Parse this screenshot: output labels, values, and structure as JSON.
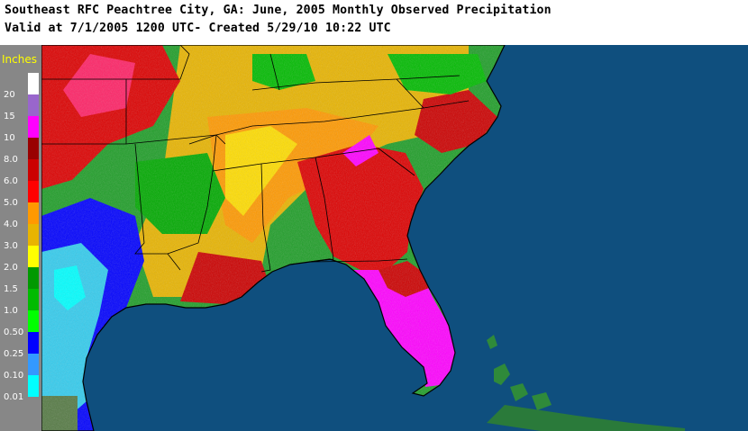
{
  "header": {
    "line1": "Southeast RFC Peachtree City, GA: June, 2005 Monthly Observed Precipitation",
    "line2": "Valid at 7/1/2005 1200 UTC- Created 5/29/10 10:22 UTC"
  },
  "legend": {
    "title": "Inches",
    "items": [
      {
        "label": "20",
        "color": "#ffffff"
      },
      {
        "label": "15",
        "color": "#9966cc"
      },
      {
        "label": "10",
        "color": "#ff00ff"
      },
      {
        "label": "8.0",
        "color": "#990000"
      },
      {
        "label": "6.0",
        "color": "#cc0000"
      },
      {
        "label": "5.0",
        "color": "#ff0000"
      },
      {
        "label": "4.0",
        "color": "#ff9900"
      },
      {
        "label": "3.0",
        "color": "#e8b400"
      },
      {
        "label": "2.0",
        "color": "#ffff00"
      },
      {
        "label": "1.5",
        "color": "#009900"
      },
      {
        "label": "1.0",
        "color": "#00bb00"
      },
      {
        "label": "0.50",
        "color": "#00ff00"
      },
      {
        "label": "0.25",
        "color": "#0000ff"
      },
      {
        "label": "0.10",
        "color": "#3399ff"
      },
      {
        "label": "0.01",
        "color": "#00ffff"
      }
    ]
  },
  "colors": {
    "ocean": "#0f4f7e",
    "land_dark": "#2a7a3a",
    "background": "#ffffff"
  }
}
